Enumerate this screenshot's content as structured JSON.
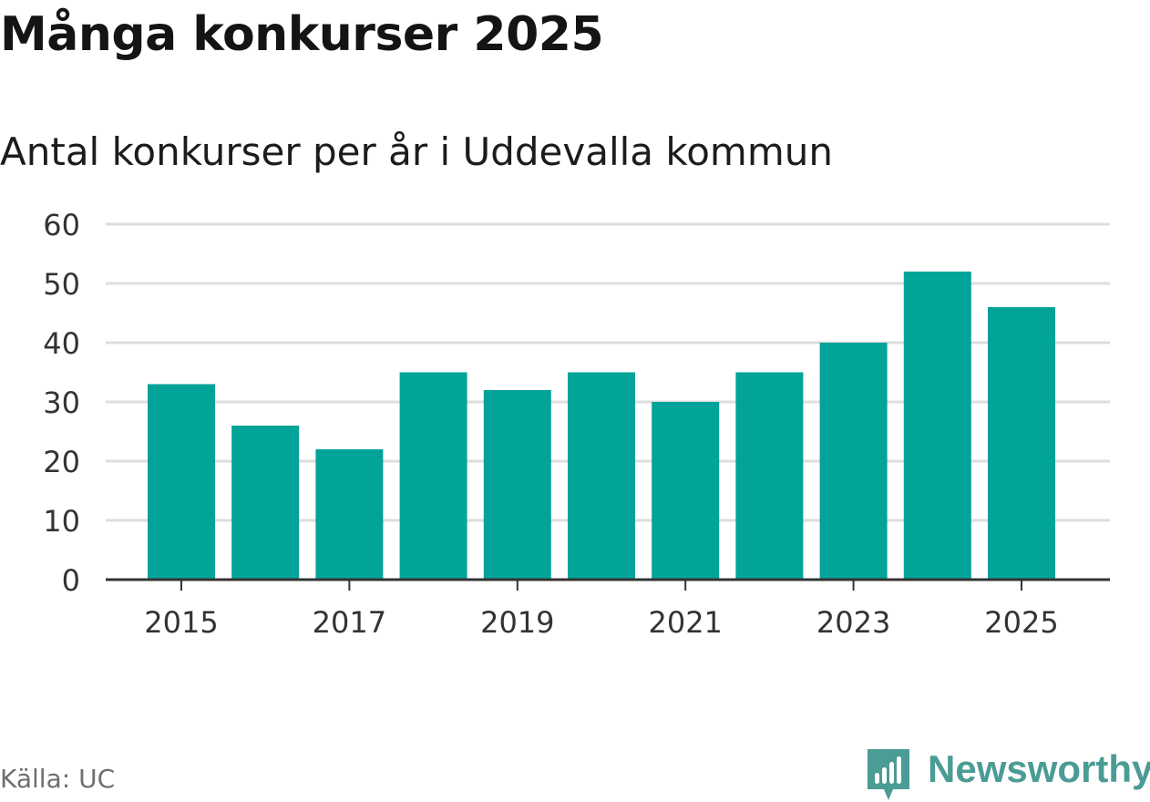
{
  "header": {
    "title": "Många konkurser 2025",
    "subtitle": "Antal konkurser per år i Uddevalla kommun"
  },
  "footer": {
    "source": "Källa: UC",
    "brand": "Newsworthy"
  },
  "colors": {
    "bar": "#02a398",
    "grid": "#dddddd",
    "axis": "#333333",
    "brand": "#4a9c95",
    "source": "#6e6e6e"
  },
  "chart_data": {
    "type": "bar",
    "title": "Många konkurser 2025",
    "subtitle": "Antal konkurser per år i Uddevalla kommun",
    "xlabel": "",
    "ylabel": "",
    "categories": [
      "2015",
      "2016",
      "2017",
      "2018",
      "2019",
      "2020",
      "2021",
      "2022",
      "2023",
      "2024",
      "2025"
    ],
    "values": [
      33,
      26,
      22,
      35,
      32,
      35,
      30,
      35,
      40,
      52,
      46
    ],
    "x_tick_labels": [
      "2015",
      "2017",
      "2019",
      "2021",
      "2023",
      "2025"
    ],
    "y_ticks": [
      0,
      10,
      20,
      30,
      40,
      50,
      60
    ],
    "ylim": [
      0,
      60
    ],
    "grid": true
  }
}
